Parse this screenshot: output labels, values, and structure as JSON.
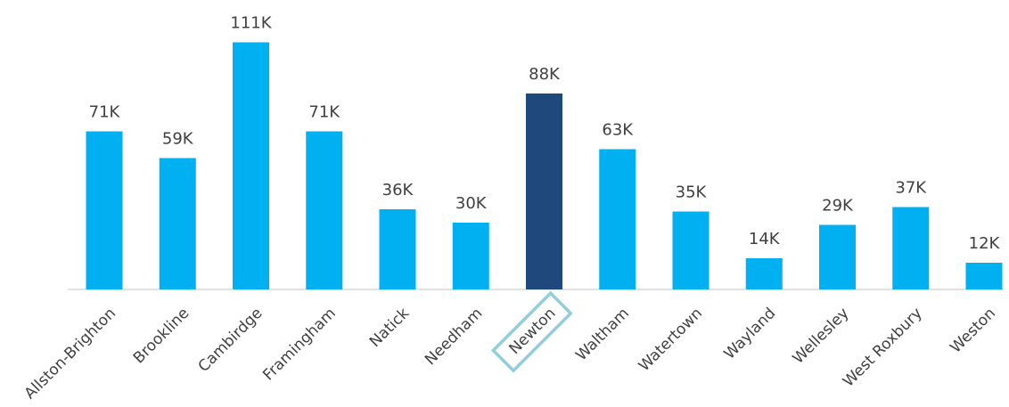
{
  "chart_data": {
    "type": "bar",
    "categories": [
      "Allston-Brighton",
      "Brookline",
      "Cambirdge",
      "Framingham",
      "Natick",
      "Needham",
      "Newton",
      "Waltham",
      "Watertown",
      "Wayland",
      "Wellesley",
      "West Roxbury",
      "Weston"
    ],
    "values": [
      71,
      59,
      111,
      71,
      36,
      30,
      88,
      63,
      35,
      14,
      29,
      37,
      12
    ],
    "value_labels": [
      "71K",
      "59K",
      "111K",
      "71K",
      "36K",
      "30K",
      "88K",
      "63K",
      "35K",
      "14K",
      "29K",
      "37K",
      "12K"
    ],
    "color": "#00b0f0",
    "colors": [
      "#00b0f0",
      "#00b0f0",
      "#00b0f0",
      "#00b0f0",
      "#00b0f0",
      "#00b0f0",
      "#1f497d",
      "#00b0f0",
      "#00b0f0",
      "#00b0f0",
      "#00b0f0",
      "#00b0f0",
      "#00b0f0"
    ],
    "label_box_color": "#92cddc"
  }
}
